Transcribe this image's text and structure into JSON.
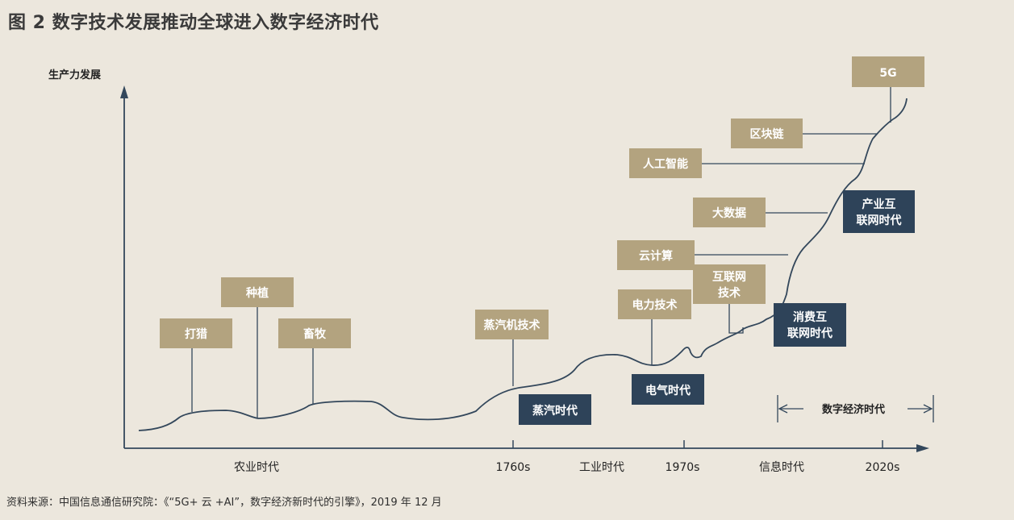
{
  "title": "图 2  数字技术发展推动全球进入数字经济时代",
  "y_axis_label": "生产力发展",
  "x_ticks": [
    "1760s",
    "1970s",
    "2020s"
  ],
  "era_labels": [
    "农业时代",
    "工业时代",
    "信息时代"
  ],
  "digital_era_label": "数字经济时代",
  "tech_boxes": {
    "hunting": "打猎",
    "planting": "种植",
    "herding": "畜牧",
    "steam_tech": "蒸汽机技术",
    "electric_tech": "电力技术",
    "internet_tech_line1": "互联网",
    "internet_tech_line2": "技术",
    "cloud": "云计算",
    "bigdata": "大数据",
    "ai": "人工智能",
    "blockchain": "区块链",
    "fiveg": "5G"
  },
  "era_boxes": {
    "steam_age": "蒸汽时代",
    "electric_age": "电气时代",
    "consumer_internet_line1": "消费互",
    "consumer_internet_line2": "联网时代",
    "industrial_internet_line1": "产业互",
    "industrial_internet_line2": "联网时代"
  },
  "source": "资料来源：中国信息通信研究院：《“5G+ 云 +AI”，数字经济新时代的引擎》，2019 年 12 月",
  "colors": {
    "background": "#ece7dd",
    "tech_box": "#b3a37f",
    "era_box": "#2e4359",
    "line": "#33475b"
  }
}
